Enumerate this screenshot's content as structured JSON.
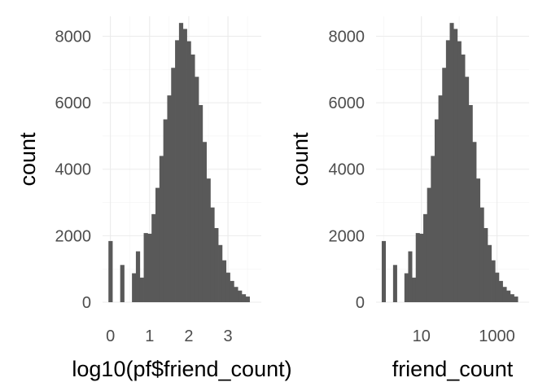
{
  "chart_data": [
    {
      "type": "bar",
      "title": "",
      "xlabel": "log10(pf$friend_count)",
      "ylabel": "count",
      "x_ticks": [
        0,
        1,
        2,
        3
      ],
      "x_tick_labels": [
        "0",
        "1",
        "2",
        "3"
      ],
      "xlim": [
        -0.2,
        3.85
      ],
      "y_ticks": [
        0,
        2000,
        4000,
        6000,
        8000
      ],
      "y_tick_labels": [
        "0",
        "2000",
        "4000",
        "6000",
        "8000"
      ],
      "ylim": [
        0,
        8600
      ],
      "bin_width": 0.1,
      "bin_centers": [
        0,
        0.1,
        0.2,
        0.3,
        0.4,
        0.5,
        0.6,
        0.7,
        0.8,
        0.9,
        1.0,
        1.1,
        1.2,
        1.3,
        1.4,
        1.5,
        1.6,
        1.7,
        1.8,
        1.9,
        2.0,
        2.1,
        2.2,
        2.3,
        2.4,
        2.5,
        2.6,
        2.7,
        2.8,
        2.9,
        3.0,
        3.1,
        3.2,
        3.3,
        3.4,
        3.5,
        3.6
      ],
      "values": [
        1840,
        0,
        0,
        1120,
        0,
        0,
        870,
        1530,
        740,
        2080,
        2060,
        2650,
        3440,
        4400,
        5500,
        6220,
        7050,
        7880,
        8400,
        8220,
        7850,
        7450,
        6780,
        5930,
        4820,
        3720,
        2850,
        2230,
        1720,
        1260,
        890,
        640,
        460,
        350,
        240,
        170,
        0
      ],
      "grid": true,
      "color": "#595959"
    },
    {
      "type": "bar",
      "title": "",
      "xlabel": "friend_count",
      "ylabel": "count",
      "x_scale": "log10",
      "x_ticks": [
        10,
        1000
      ],
      "x_tick_labels": [
        "10",
        "1000"
      ],
      "xlim": [
        0.631,
        7079
      ],
      "y_ticks": [
        0,
        2000,
        4000,
        6000,
        8000
      ],
      "y_tick_labels": [
        "0",
        "2000",
        "4000",
        "6000",
        "8000"
      ],
      "ylim": [
        0,
        8600
      ],
      "bin_width_log10": 0.1,
      "bin_centers": [
        1,
        1.259,
        1.585,
        1.995,
        2.512,
        3.162,
        3.981,
        5.012,
        6.31,
        7.943,
        10,
        12.59,
        15.85,
        19.95,
        25.12,
        31.62,
        39.81,
        50.12,
        63.1,
        79.43,
        100,
        125.9,
        158.5,
        199.5,
        251.2,
        316.2,
        398.1,
        501.2,
        631,
        794.3,
        1000,
        1259,
        1585,
        1995,
        2512,
        3162,
        3981
      ],
      "values": [
        1840,
        0,
        0,
        1120,
        0,
        0,
        870,
        1530,
        740,
        2080,
        2060,
        2650,
        3440,
        4400,
        5500,
        6220,
        7050,
        7880,
        8400,
        8220,
        7850,
        7450,
        6780,
        5930,
        4820,
        3720,
        2850,
        2230,
        1720,
        1260,
        890,
        640,
        460,
        350,
        240,
        170,
        0
      ],
      "grid": true,
      "color": "#595959"
    }
  ]
}
